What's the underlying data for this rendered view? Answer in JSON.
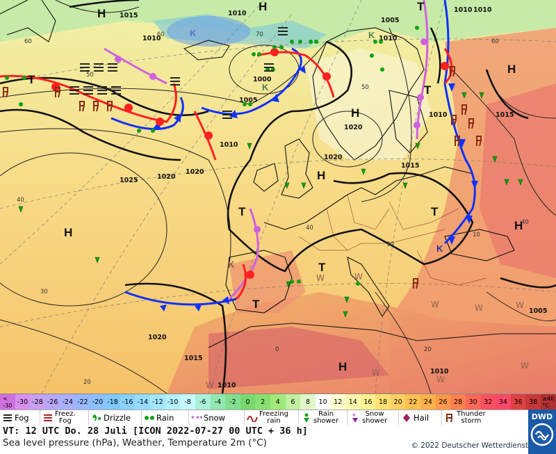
{
  "map": {
    "pressure_labels": [
      "1015",
      "1010",
      "1010",
      "1010",
      "1005",
      "1000",
      "1010",
      "1005",
      "1010",
      "1020",
      "1010",
      "1015",
      "1015",
      "1025",
      "1020",
      "1020",
      "1020",
      "1020",
      "1015",
      "1010",
      "1005",
      "1010",
      "1010",
      "1015"
    ],
    "pressure_systems": [
      "H",
      "H",
      "K",
      "T",
      "K",
      "T",
      "K",
      "H",
      "H",
      "T",
      "T",
      "H",
      "K",
      "H",
      "T",
      "K",
      "H",
      "T",
      "T",
      "H"
    ],
    "temp_labels": [
      "50",
      "60",
      "70",
      "60",
      "60",
      "50",
      "40",
      "40",
      "30",
      "30",
      "20",
      "20",
      "10",
      "0",
      "40"
    ],
    "weather_codes": [
      "W",
      "W",
      "W",
      "W",
      "W",
      "W",
      "W",
      "W",
      "W"
    ]
  },
  "scale": {
    "values": [
      "<\n-30",
      "-30",
      "-28",
      "-26",
      "-24",
      "-22",
      "-20",
      "-18",
      "-16",
      "-14",
      "-12",
      "-10",
      "-8",
      "-6",
      "-4",
      "-2",
      "0",
      "2",
      "4",
      "6",
      "8",
      "10",
      "12",
      "14",
      "16",
      "18",
      "20",
      "22",
      "24",
      "26",
      "28",
      "30",
      "32",
      "34",
      "36",
      "38",
      "≥40\n°C"
    ],
    "colors": [
      "#d070e0",
      "#d890f0",
      "#c7a0f0",
      "#b8a8f8",
      "#a8b0ff",
      "#98b8ff",
      "#8cc0ff",
      "#80c8ff",
      "#8ad2ff",
      "#96dcff",
      "#a4e6ff",
      "#b4f0ff",
      "#c4f8ff",
      "#aaf0d8",
      "#90e8b0",
      "#80e090",
      "#78d870",
      "#88e070",
      "#a0e878",
      "#c0f0a0",
      "#e0f8c8",
      "#ffffff",
      "#ffffd0",
      "#fff8b0",
      "#fff090",
      "#ffe070",
      "#ffd060",
      "#ffc050",
      "#ffb048",
      "#ff9848",
      "#ff8050",
      "#ff6858",
      "#ff5060",
      "#ff4868",
      "#e04040",
      "#c83838",
      "#b03030"
    ]
  },
  "legend": {
    "fog": "Fog",
    "freez_fog": "Freez.\nFog",
    "drizzle": "Drizzle",
    "rain": "Rain",
    "snow": "Snow",
    "freezing_rain": "Freezing\nrain",
    "rain_shower": "Rain\nshower",
    "snow_shower": "Snow\nshower",
    "hail": "Hail",
    "thunderstorm": "Thunder\nstorm"
  },
  "info": {
    "line1": "VT: 12 UTC Do.  28 Juli [ICON 2022-07-27  00 UTC + 36 h]",
    "line2": "Sea level pressure (hPa), Weather, Temperature 2m (°C)",
    "copyright": "© 2022 Deutscher Wetterdienst"
  },
  "logo": {
    "text": "DWD"
  }
}
